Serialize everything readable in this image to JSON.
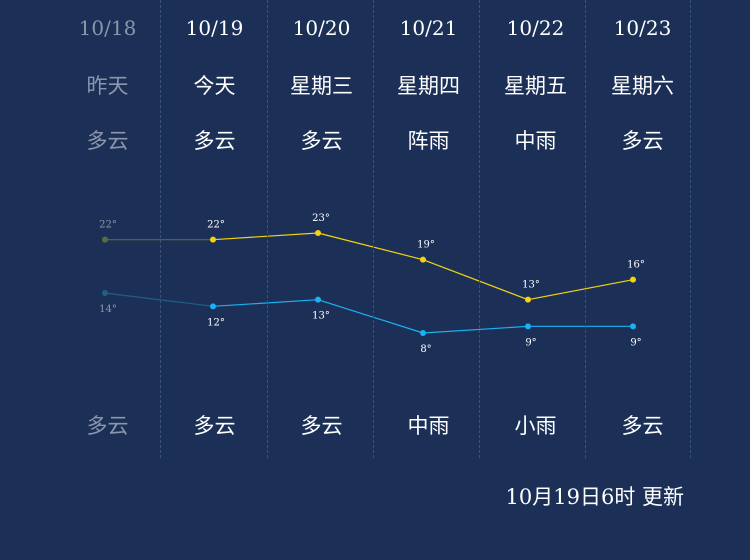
{
  "days": [
    {
      "date": "10/18",
      "weekday": "昨天",
      "weather_day": "多云",
      "weather_night": "多云",
      "high": 22,
      "low": 14,
      "high_label": "22°",
      "low_label": "14°",
      "past": true
    },
    {
      "date": "10/19",
      "weekday": "今天",
      "weather_day": "多云",
      "weather_night": "多云",
      "high": 22,
      "low": 12,
      "high_label": "22°",
      "low_label": "12°",
      "past": false
    },
    {
      "date": "10/20",
      "weekday": "星期三",
      "weather_day": "多云",
      "weather_night": "多云",
      "high": 23,
      "low": 13,
      "high_label": "23°",
      "low_label": "13°",
      "past": false
    },
    {
      "date": "10/21",
      "weekday": "星期四",
      "weather_day": "阵雨",
      "weather_night": "中雨",
      "high": 19,
      "low": 8,
      "high_label": "19°",
      "low_label": "8°",
      "past": false
    },
    {
      "date": "10/22",
      "weekday": "星期五",
      "weather_day": "中雨",
      "weather_night": "小雨",
      "high": 13,
      "low": 9,
      "high_label": "13°",
      "low_label": "9°",
      "past": false
    },
    {
      "date": "10/23",
      "weekday": "星期六",
      "weather_day": "多云",
      "weather_night": "多云",
      "high": 16,
      "low": 9,
      "high_label": "16°",
      "low_label": "9°",
      "past": false
    }
  ],
  "colors": {
    "high_line": "#f2d211",
    "low_line": "#1ab2f2",
    "past_high": "#5f6a3a",
    "past_low": "#1f5f88",
    "past_text": "#8a97ab"
  },
  "footer": {
    "updated": "10月19日6时 更新"
  }
}
